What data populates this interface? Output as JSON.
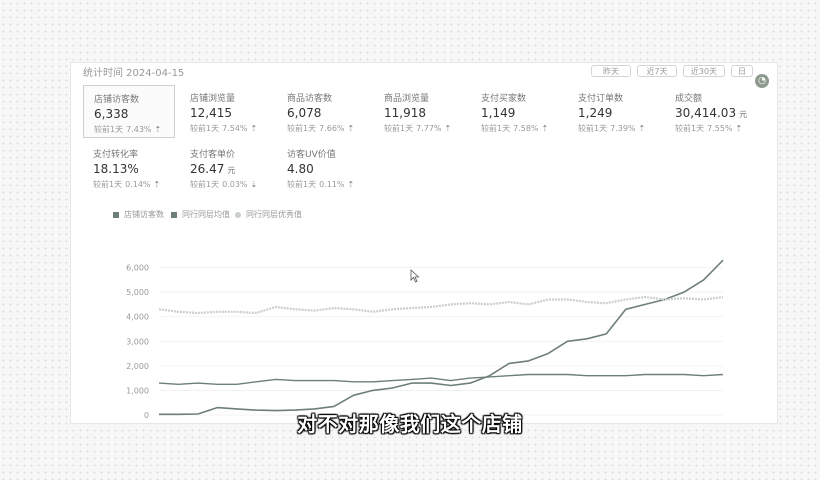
{
  "card": {
    "title": "统计时间 2024-04-15",
    "top_buttons": [
      "昨天",
      "近7天",
      "近30天",
      "日"
    ]
  },
  "metrics": [
    {
      "label": "店铺访客数",
      "value": "6,338",
      "unit": "",
      "cmp_label": "较前1天",
      "cmp_value": "7.43%",
      "arrow": "⇡",
      "selected": true
    },
    {
      "label": "店铺浏览量",
      "value": "12,415",
      "unit": "",
      "cmp_label": "较前1天",
      "cmp_value": "7.54%",
      "arrow": "⇡",
      "selected": false
    },
    {
      "label": "商品访客数",
      "value": "6,078",
      "unit": "",
      "cmp_label": "较前1天",
      "cmp_value": "7.66%",
      "arrow": "⇡",
      "selected": false
    },
    {
      "label": "商品浏览量",
      "value": "11,918",
      "unit": "",
      "cmp_label": "较前1天",
      "cmp_value": "7.77%",
      "arrow": "⇡",
      "selected": false
    },
    {
      "label": "支付买家数",
      "value": "1,149",
      "unit": "",
      "cmp_label": "较前1天",
      "cmp_value": "7.58%",
      "arrow": "⇡",
      "selected": false
    },
    {
      "label": "支付订单数",
      "value": "1,249",
      "unit": "",
      "cmp_label": "较前1天",
      "cmp_value": "7.39%",
      "arrow": "⇡",
      "selected": false
    },
    {
      "label": "成交额",
      "value": "30,414.03",
      "unit": "元",
      "cmp_label": "较前1天",
      "cmp_value": "7.55%",
      "arrow": "⇡",
      "selected": false
    },
    {
      "label": "支付转化率",
      "value": "18.13%",
      "unit": "",
      "cmp_label": "较前1天",
      "cmp_value": "0.14%",
      "arrow": "⇡",
      "selected": false
    },
    {
      "label": "支付客单价",
      "value": "26.47",
      "unit": "元",
      "cmp_label": "较前1天",
      "cmp_value": "0.03%",
      "arrow": "⇣",
      "selected": false
    },
    {
      "label": "访客UV价值",
      "value": "4.80",
      "unit": "",
      "cmp_label": "较前1天",
      "cmp_value": "0.11%",
      "arrow": "⇡",
      "selected": false
    }
  ],
  "colors": {
    "accent": "#6e7f78",
    "series1": "#6e7f78",
    "series2": "#6e7f78",
    "series3": "#c9cfc9",
    "grid": "#efefef"
  },
  "chart_data": {
    "type": "line",
    "ylim": [
      0,
      7000
    ],
    "y_ticks": [
      "0",
      "1,000",
      "2,000",
      "3,000",
      "4,000",
      "5,000",
      "6,000"
    ],
    "grid": true,
    "legend_position": "top-left",
    "series": [
      {
        "name": "店铺访客数",
        "values": [
          30,
          30,
          40,
          300,
          250,
          200,
          180,
          200,
          250,
          350,
          800,
          1000,
          1100,
          1300,
          1300,
          1200,
          1300,
          1600,
          2100,
          2200,
          2500,
          3000,
          3100,
          3300,
          4300,
          4500,
          4700,
          5000,
          5500,
          6300
        ]
      },
      {
        "name": "同行同层均值",
        "values": [
          1300,
          1250,
          1300,
          1250,
          1250,
          1350,
          1450,
          1400,
          1400,
          1400,
          1350,
          1350,
          1400,
          1450,
          1500,
          1400,
          1500,
          1550,
          1600,
          1650,
          1650,
          1650,
          1600,
          1600,
          1600,
          1650,
          1650,
          1650,
          1600,
          1650
        ]
      },
      {
        "name": "同行同层优秀值",
        "values": [
          4300,
          4200,
          4150,
          4200,
          4200,
          4150,
          4400,
          4300,
          4250,
          4350,
          4300,
          4200,
          4300,
          4350,
          4400,
          4500,
          4550,
          4500,
          4600,
          4500,
          4700,
          4700,
          4600,
          4550,
          4700,
          4800,
          4700,
          4750,
          4700,
          4800
        ]
      }
    ]
  },
  "subtitle": "对不对那像我们这个店铺",
  "icons": {
    "cursor": "cursor-arrow-icon",
    "side": "chat-bubble-icon"
  }
}
